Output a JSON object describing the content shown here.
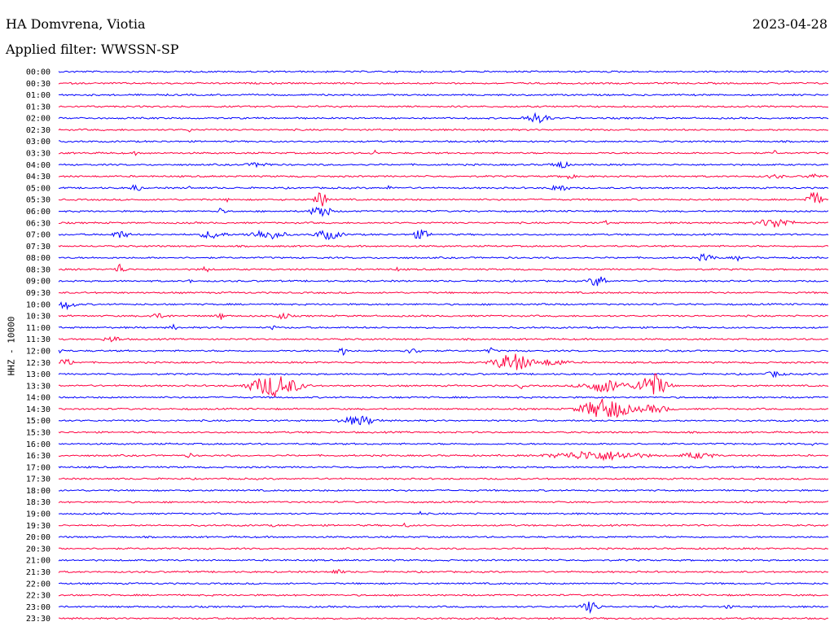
{
  "header": {
    "station": "HA Domvrena, Viotia",
    "date": "2023-04-28",
    "filter": "Applied filter: WWSSN-SP"
  },
  "chart_data": {
    "type": "line",
    "title": "HA Domvrena, Viotia",
    "subtitle": "Applied filter: WWSSN-SP",
    "date": "2023-04-28",
    "ylabel": "HHZ - 10000",
    "trace_colors": [
      "#0000ff",
      "#ff0040"
    ],
    "rows": [
      {
        "label": "00:00",
        "events": []
      },
      {
        "label": "00:30",
        "events": []
      },
      {
        "label": "01:00",
        "events": []
      },
      {
        "label": "01:30",
        "events": []
      },
      {
        "label": "02:00",
        "events": [
          {
            "pos": 0.62,
            "amp": 6,
            "dur": 0.03
          }
        ]
      },
      {
        "label": "02:30",
        "events": [
          {
            "pos": 0.17,
            "amp": 3,
            "dur": 0.005
          }
        ]
      },
      {
        "label": "03:00",
        "events": []
      },
      {
        "label": "03:30",
        "events": [
          {
            "pos": 0.1,
            "amp": 3,
            "dur": 0.004
          },
          {
            "pos": 0.41,
            "amp": 4,
            "dur": 0.008
          },
          {
            "pos": 0.93,
            "amp": 4,
            "dur": 0.005
          }
        ]
      },
      {
        "label": "04:00",
        "events": [
          {
            "pos": 0.26,
            "amp": 3,
            "dur": 0.03
          },
          {
            "pos": 0.65,
            "amp": 5,
            "dur": 0.02
          }
        ]
      },
      {
        "label": "04:30",
        "events": [
          {
            "pos": 0.66,
            "amp": 3,
            "dur": 0.02
          },
          {
            "pos": 0.93,
            "amp": 3,
            "dur": 0.02
          },
          {
            "pos": 0.98,
            "amp": 3,
            "dur": 0.02
          }
        ]
      },
      {
        "label": "05:00",
        "events": [
          {
            "pos": 0.1,
            "amp": 6,
            "dur": 0.01
          },
          {
            "pos": 0.17,
            "amp": 3,
            "dur": 0.004
          },
          {
            "pos": 0.43,
            "amp": 4,
            "dur": 0.005
          },
          {
            "pos": 0.65,
            "amp": 5,
            "dur": 0.02
          }
        ]
      },
      {
        "label": "05:30",
        "events": [
          {
            "pos": 0.34,
            "amp": 14,
            "dur": 0.01
          },
          {
            "pos": 0.22,
            "amp": 3,
            "dur": 0.005
          },
          {
            "pos": 0.98,
            "amp": 10,
            "dur": 0.015
          }
        ]
      },
      {
        "label": "06:00",
        "events": [
          {
            "pos": 0.34,
            "amp": 9,
            "dur": 0.02
          },
          {
            "pos": 0.21,
            "amp": 4,
            "dur": 0.01
          }
        ]
      },
      {
        "label": "06:30",
        "events": [
          {
            "pos": 0.93,
            "amp": 6,
            "dur": 0.04
          },
          {
            "pos": 0.71,
            "amp": 3,
            "dur": 0.01
          }
        ]
      },
      {
        "label": "07:00",
        "events": [
          {
            "pos": 0.08,
            "amp": 5,
            "dur": 0.02
          },
          {
            "pos": 0.2,
            "amp": 5,
            "dur": 0.03
          },
          {
            "pos": 0.27,
            "amp": 6,
            "dur": 0.04
          },
          {
            "pos": 0.35,
            "amp": 6,
            "dur": 0.03
          },
          {
            "pos": 0.47,
            "amp": 6,
            "dur": 0.02
          }
        ]
      },
      {
        "label": "07:30",
        "events": []
      },
      {
        "label": "08:00",
        "events": [
          {
            "pos": 0.84,
            "amp": 5,
            "dur": 0.02
          },
          {
            "pos": 0.88,
            "amp": 4,
            "dur": 0.01
          }
        ]
      },
      {
        "label": "08:30",
        "events": [
          {
            "pos": 0.08,
            "amp": 8,
            "dur": 0.01
          },
          {
            "pos": 0.19,
            "amp": 4,
            "dur": 0.01
          },
          {
            "pos": 0.44,
            "amp": 3,
            "dur": 0.005
          }
        ]
      },
      {
        "label": "09:00",
        "events": [
          {
            "pos": 0.7,
            "amp": 7,
            "dur": 0.02
          },
          {
            "pos": 0.17,
            "amp": 3,
            "dur": 0.005
          }
        ]
      },
      {
        "label": "09:30",
        "events": []
      },
      {
        "label": "10:00",
        "events": [
          {
            "pos": 0.01,
            "amp": 6,
            "dur": 0.02
          },
          {
            "pos": 0.63,
            "amp": 3,
            "dur": 0.005
          }
        ]
      },
      {
        "label": "10:30",
        "events": [
          {
            "pos": 0.13,
            "amp": 3,
            "dur": 0.03
          },
          {
            "pos": 0.21,
            "amp": 5,
            "dur": 0.01
          },
          {
            "pos": 0.29,
            "amp": 4,
            "dur": 0.02
          }
        ]
      },
      {
        "label": "11:00",
        "events": [
          {
            "pos": 0.15,
            "amp": 4,
            "dur": 0.01
          },
          {
            "pos": 0.28,
            "amp": 3,
            "dur": 0.01
          }
        ]
      },
      {
        "label": "11:30",
        "events": [
          {
            "pos": 0.07,
            "amp": 4,
            "dur": 0.02
          }
        ]
      },
      {
        "label": "12:00",
        "events": [
          {
            "pos": 0.0,
            "amp": 5,
            "dur": 0.01
          },
          {
            "pos": 0.37,
            "amp": 6,
            "dur": 0.01
          },
          {
            "pos": 0.46,
            "amp": 3,
            "dur": 0.03
          },
          {
            "pos": 0.56,
            "amp": 4,
            "dur": 0.01
          }
        ]
      },
      {
        "label": "12:30",
        "events": [
          {
            "pos": 0.01,
            "amp": 4,
            "dur": 0.02
          },
          {
            "pos": 0.59,
            "amp": 11,
            "dur": 0.04
          },
          {
            "pos": 0.64,
            "amp": 4,
            "dur": 0.04
          }
        ]
      },
      {
        "label": "13:00",
        "events": [
          {
            "pos": 0.93,
            "amp": 4,
            "dur": 0.02
          }
        ]
      },
      {
        "label": "13:30",
        "events": [
          {
            "pos": 0.28,
            "amp": 14,
            "dur": 0.05
          },
          {
            "pos": 0.6,
            "amp": 5,
            "dur": 0.005
          },
          {
            "pos": 0.71,
            "amp": 8,
            "dur": 0.05
          },
          {
            "pos": 0.77,
            "amp": 16,
            "dur": 0.03
          }
        ]
      },
      {
        "label": "14:00",
        "events": []
      },
      {
        "label": "14:30",
        "events": [
          {
            "pos": 0.71,
            "amp": 13,
            "dur": 0.05
          },
          {
            "pos": 0.77,
            "amp": 5,
            "dur": 0.04
          }
        ]
      },
      {
        "label": "15:00",
        "events": [
          {
            "pos": 0.39,
            "amp": 6,
            "dur": 0.04
          }
        ]
      },
      {
        "label": "15:30",
        "events": []
      },
      {
        "label": "16:00",
        "events": [
          {
            "pos": 0.98,
            "amp": 3,
            "dur": 0.005
          }
        ]
      },
      {
        "label": "16:30",
        "events": [
          {
            "pos": 0.7,
            "amp": 6,
            "dur": 0.1
          },
          {
            "pos": 0.17,
            "amp": 3,
            "dur": 0.01
          },
          {
            "pos": 0.83,
            "amp": 4,
            "dur": 0.04
          }
        ]
      },
      {
        "label": "17:00",
        "events": []
      },
      {
        "label": "17:30",
        "events": []
      },
      {
        "label": "18:00",
        "events": []
      },
      {
        "label": "18:30",
        "events": []
      },
      {
        "label": "19:00",
        "events": [
          {
            "pos": 0.47,
            "amp": 4,
            "dur": 0.004
          }
        ]
      },
      {
        "label": "19:30",
        "events": [
          {
            "pos": 0.28,
            "amp": 3,
            "dur": 0.005
          },
          {
            "pos": 0.45,
            "amp": 3,
            "dur": 0.01
          }
        ]
      },
      {
        "label": "20:00",
        "events": []
      },
      {
        "label": "20:30",
        "events": []
      },
      {
        "label": "21:00",
        "events": []
      },
      {
        "label": "21:30",
        "events": [
          {
            "pos": 0.36,
            "amp": 3,
            "dur": 0.02
          }
        ]
      },
      {
        "label": "22:00",
        "events": []
      },
      {
        "label": "22:30",
        "events": []
      },
      {
        "label": "23:00",
        "events": [
          {
            "pos": 0.69,
            "amp": 7,
            "dur": 0.02
          },
          {
            "pos": 0.87,
            "amp": 3,
            "dur": 0.01
          }
        ]
      },
      {
        "label": "23:30",
        "events": []
      }
    ]
  }
}
